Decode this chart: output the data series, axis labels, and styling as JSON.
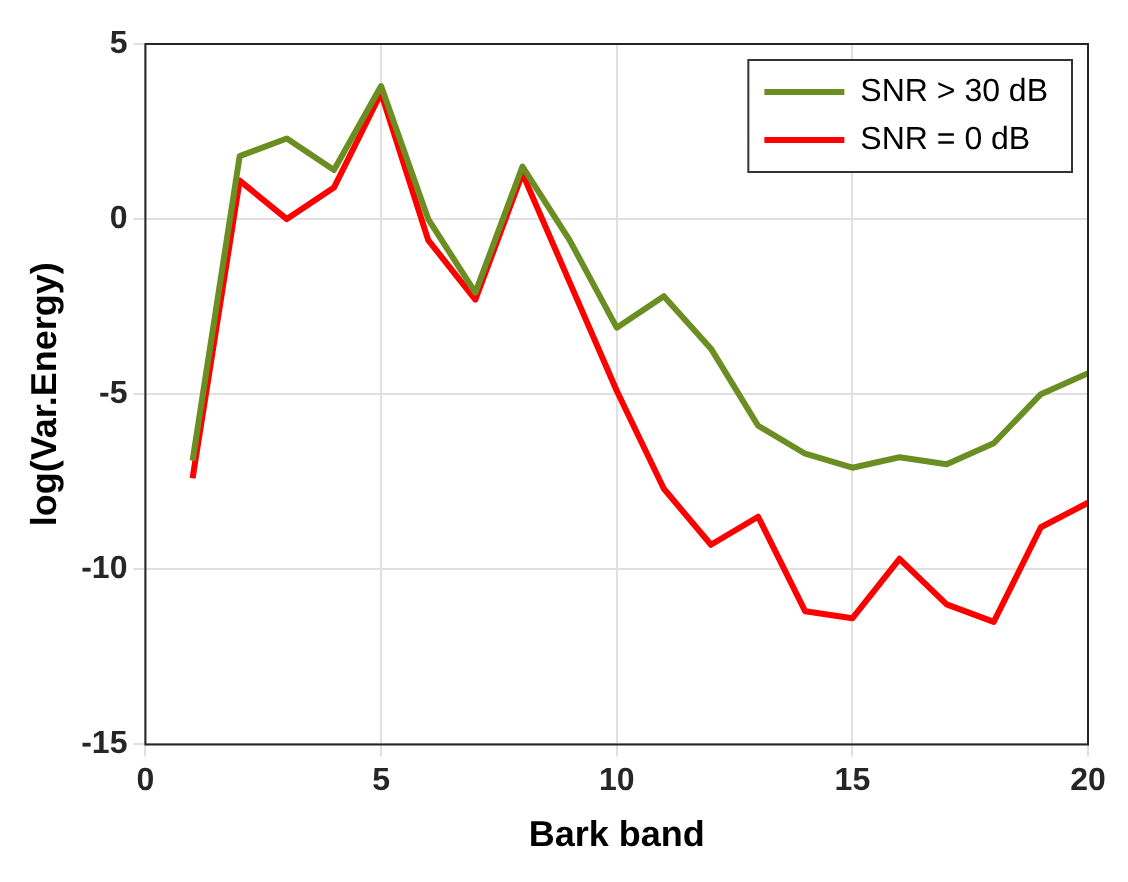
{
  "chart_data": {
    "type": "line",
    "xlabel": "Bark band",
    "ylabel": "log(Var.Energy)",
    "x": [
      1,
      2,
      3,
      4,
      5,
      6,
      7,
      8,
      9,
      10,
      11,
      12,
      13,
      14,
      15,
      16,
      17,
      18,
      19,
      20
    ],
    "series": [
      {
        "name": "SNR > 30 dB",
        "color": "#6b8e23",
        "values": [
          -6.9,
          1.8,
          2.3,
          1.4,
          3.8,
          0,
          -2.1,
          1.5,
          -0.6,
          -3.1,
          -2.2,
          -3.7,
          -5.9,
          -6.7,
          -7.1,
          -6.8,
          -7.0,
          -6.4,
          -5.0,
          -4.4
        ]
      },
      {
        "name": "SNR = 0 dB",
        "color": "#ff0000",
        "values": [
          -7.4,
          1.1,
          0,
          0.9,
          3.6,
          -0.6,
          -2.3,
          1.3,
          -1.8,
          -4.9,
          -7.7,
          -9.3,
          -8.5,
          -11.2,
          -11.4,
          -9.7,
          -11.0,
          -11.5,
          -8.8,
          -8.1
        ]
      }
    ],
    "xlim": [
      0,
      20
    ],
    "xticks": [
      0,
      5,
      10,
      15,
      20
    ],
    "ylim": [
      -15,
      5
    ],
    "yticks": [
      -15,
      -10,
      -5,
      0,
      5
    ],
    "grid": true,
    "legend": "top right",
    "marker": "none",
    "line_style": "solid"
  }
}
